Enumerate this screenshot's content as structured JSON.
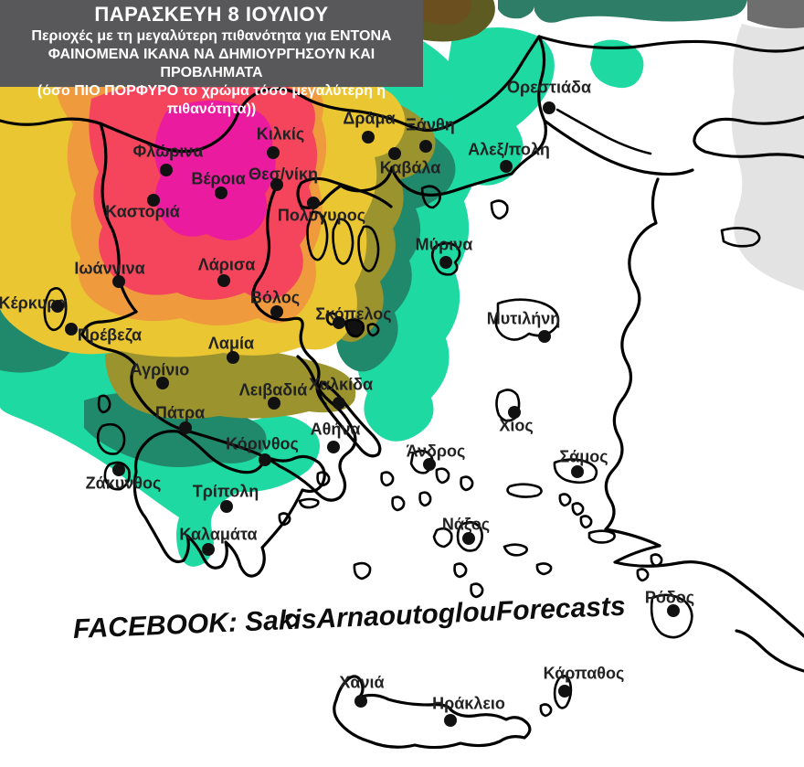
{
  "header": {
    "title": "ΠΑΡΑΣΚΕΥΗ 8 ΙΟΥΛΙΟΥ",
    "line2": "Περιοχές με τη μεγαλύτερη πιθανότητα για ΕΝΤΟΝΑ",
    "line3": "ΦΑΙΝΟΜΕΝΑ ΙΚΑΝΑ ΝΑ ΔΗΜΙΟΥΡΓΗΣΟΥΝ ΚΑΙ ΠΡΟΒΛΗΜΑΤΑ",
    "line4": "(όσο ΠΙΟ ΠΟΡΦΥΡΟ το χρώμα τόσο μεγαλύτερη η πιθανότητα))",
    "background": "#58585a",
    "text_color": "#ffffff"
  },
  "watermark": {
    "text": "FACEBOOK: SakisArnaoutoglouForecasts"
  },
  "colors": {
    "sea": "#ffffff",
    "turkey_land": "#e3e3e3",
    "corner_gray": "#6e6e6e",
    "band_green": "#2e7d66",
    "teal": "#1fd9a3",
    "dark_green": "#20886b",
    "olive": "#9a932e",
    "dark_olive": "#5d5b22",
    "brown": "#6b4f1e",
    "yellow": "#e9c632",
    "orange": "#f09a3e",
    "red": "#f4455c",
    "magenta": "#ea1b9f",
    "island_dark": "#111111"
  },
  "map": {
    "type": "weather-probability-map",
    "region": "Greece",
    "probability_scale": [
      {
        "level": "highest",
        "color": "#ea1b9f"
      },
      {
        "level": "very-high",
        "color": "#f4455c"
      },
      {
        "level": "high",
        "color": "#f09a3e"
      },
      {
        "level": "elevated",
        "color": "#e9c632"
      },
      {
        "level": "moderate",
        "color": "#9a932e"
      },
      {
        "level": "low",
        "color": "#20886b"
      },
      {
        "level": "lowest",
        "color": "#1fd9a3"
      }
    ],
    "cities": [
      {
        "name": "Ορεστιάδα",
        "label": [
          601,
          96
        ],
        "dot": [
          601,
          118
        ]
      },
      {
        "name": "Δράμα",
        "label": [
          404,
          130
        ],
        "dot": [
          403,
          150
        ]
      },
      {
        "name": "Ξάνθη",
        "label": [
          471,
          137
        ],
        "dot": [
          466,
          160
        ]
      },
      {
        "name": "Αλεξ/πολη",
        "label": [
          557,
          164
        ],
        "dot": [
          554,
          182
        ]
      },
      {
        "name": "Κιλκίς",
        "label": [
          307,
          147
        ],
        "dot": [
          299,
          167
        ]
      },
      {
        "name": "Φλώρινα",
        "label": [
          184,
          166
        ],
        "dot": [
          182,
          186
        ]
      },
      {
        "name": "Καβάλα",
        "label": [
          449,
          184
        ],
        "dot": [
          432,
          168
        ]
      },
      {
        "name": "Βέροια",
        "label": [
          239,
          196
        ],
        "dot": [
          242,
          211
        ]
      },
      {
        "name": "Θεσ/νίκη",
        "label": [
          310,
          191
        ],
        "dot": [
          303,
          202
        ]
      },
      {
        "name": "Καστοριά",
        "label": [
          156,
          232
        ],
        "dot": [
          168,
          219
        ]
      },
      {
        "name": "Πολύγυρος",
        "label": [
          352,
          236
        ],
        "dot": [
          343,
          222
        ]
      },
      {
        "name": "Μύρινα",
        "label": [
          486,
          268
        ],
        "dot": [
          488,
          287
        ]
      },
      {
        "name": "Λάρισα",
        "label": [
          248,
          290
        ],
        "dot": [
          245,
          307
        ]
      },
      {
        "name": "Ιωάννινα",
        "label": [
          120,
          294
        ],
        "dot": [
          130,
          308
        ]
      },
      {
        "name": "Βόλος",
        "label": [
          301,
          326
        ],
        "dot": [
          303,
          341
        ]
      },
      {
        "name": "Κέρκυρα",
        "label": [
          36,
          332
        ],
        "dot": [
          63,
          335
        ]
      },
      {
        "name": "Σκόπελος",
        "label": [
          387,
          344
        ],
        "dot": [
          371,
          353
        ]
      },
      {
        "name": "Μυτιλήνη",
        "label": [
          573,
          349
        ],
        "dot": [
          596,
          368
        ]
      },
      {
        "name": "Πρέβεζα",
        "label": [
          120,
          367
        ],
        "dot": [
          78,
          360
        ]
      },
      {
        "name": "Λαμία",
        "label": [
          253,
          376
        ],
        "dot": [
          255,
          391
        ]
      },
      {
        "name": "Αγρίνιο",
        "label": [
          175,
          405
        ],
        "dot": [
          178,
          419
        ]
      },
      {
        "name": "Χαλκίδα",
        "label": [
          373,
          421
        ],
        "dot": [
          371,
          441
        ]
      },
      {
        "name": "Λειβαδιά",
        "label": [
          299,
          427
        ],
        "dot": [
          300,
          441
        ]
      },
      {
        "name": "Πάτρα",
        "label": [
          197,
          452
        ],
        "dot": [
          203,
          468
        ]
      },
      {
        "name": "Αθήνα",
        "label": [
          367,
          470
        ],
        "dot": [
          365,
          489
        ]
      },
      {
        "name": "Χίος",
        "label": [
          565,
          466
        ],
        "dot": [
          563,
          451
        ]
      },
      {
        "name": "Κόρινθος",
        "label": [
          287,
          486
        ],
        "dot": [
          290,
          503
        ]
      },
      {
        "name": "Άνδρος",
        "label": [
          477,
          494
        ],
        "dot": [
          470,
          508
        ]
      },
      {
        "name": "Σάμος",
        "label": [
          639,
          500
        ],
        "dot": [
          632,
          516
        ]
      },
      {
        "name": "Ζάκυνθος",
        "label": [
          135,
          529
        ],
        "dot": [
          130,
          514
        ]
      },
      {
        "name": "Τρίπολη",
        "label": [
          247,
          538
        ],
        "dot": [
          248,
          554
        ]
      },
      {
        "name": "Νάξος",
        "label": [
          510,
          574
        ],
        "dot": [
          513,
          589
        ]
      },
      {
        "name": "Καλαμάτα",
        "label": [
          239,
          585
        ],
        "dot": [
          228,
          601
        ]
      },
      {
        "name": "Ρόδος",
        "label": [
          733,
          654
        ],
        "dot": [
          737,
          668
        ]
      },
      {
        "name": "Κάρπαθος",
        "label": [
          639,
          737
        ],
        "dot": [
          618,
          756
        ]
      },
      {
        "name": "Χανιά",
        "label": [
          396,
          747
        ],
        "dot": [
          395,
          767
        ]
      },
      {
        "name": "Ηράκλειο",
        "label": [
          513,
          770
        ],
        "dot": [
          493,
          788
        ]
      }
    ]
  }
}
